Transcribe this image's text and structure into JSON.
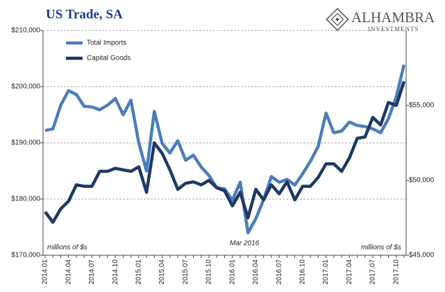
{
  "chart_data": {
    "type": "line",
    "title": "US Trade, SA",
    "logo": {
      "name": "ALHAMBRA",
      "sub": "INVESTMENTS"
    },
    "annotations": [
      "millions of $s",
      "Mar 2016",
      "millions of $s"
    ],
    "categories": [
      "2014.01",
      null,
      null,
      "2014.04",
      null,
      null,
      "2014.07",
      null,
      null,
      "2014.10",
      null,
      null,
      "2015.01",
      null,
      null,
      "2015.04",
      null,
      null,
      "2015.07",
      null,
      null,
      "2015.10",
      null,
      null,
      "2016.01",
      null,
      null,
      "2016.04",
      null,
      null,
      "2016.07",
      null,
      null,
      "2016.10",
      null,
      null,
      "2017.01",
      null,
      null,
      "2017.04",
      null,
      null,
      "2017.07",
      null,
      null,
      "2017.10",
      null
    ],
    "series": [
      {
        "name": "Total Imports",
        "color": "#4a7ebb",
        "axis": "y",
        "values": [
          192200,
          192500,
          196700,
          199300,
          198600,
          196500,
          196400,
          195900,
          196700,
          197900,
          195000,
          197600,
          190000,
          185000,
          195600,
          189900,
          188200,
          190400,
          186900,
          187800,
          185700,
          184200,
          182000,
          181800,
          179800,
          183000,
          174000,
          176500,
          179900,
          184000,
          183000,
          183500,
          182500,
          184500,
          186700,
          189400,
          195300,
          191800,
          192100,
          193700,
          193100,
          192900,
          192500,
          191800,
          194300,
          198200,
          203900
        ]
      },
      {
        "name": "Capital Goods",
        "color": "#1f3864",
        "axis": "y2",
        "values": [
          47900,
          47200,
          48100,
          48600,
          49700,
          49600,
          49600,
          50600,
          50600,
          50800,
          50700,
          50600,
          50900,
          49200,
          52500,
          51800,
          50700,
          49400,
          49800,
          49900,
          49700,
          50000,
          49500,
          49300,
          48300,
          49200,
          47500,
          49400,
          48700,
          49700,
          49100,
          49900,
          48700,
          49600,
          49600,
          50200,
          51100,
          51100,
          50600,
          51500,
          52800,
          52900,
          54200,
          53700,
          55200,
          55000,
          56600
        ]
      }
    ],
    "ylim": [
      170000,
      210000
    ],
    "yticks": [
      {
        "value": 170000,
        "label": "$170,000"
      },
      {
        "value": 180000,
        "label": "$180,000"
      },
      {
        "value": 190000,
        "label": "$190,000"
      },
      {
        "value": 200000,
        "label": "$200,000"
      },
      {
        "value": 210000,
        "label": "$210,000"
      }
    ],
    "y2lim": [
      45000,
      60000
    ],
    "y2ticks": [
      {
        "value": 45000,
        "label": "$45,000"
      },
      {
        "value": 50000,
        "label": "$50,000"
      },
      {
        "value": 55000,
        "label": "$55,000"
      }
    ],
    "grid": true,
    "legend": "upper left"
  }
}
